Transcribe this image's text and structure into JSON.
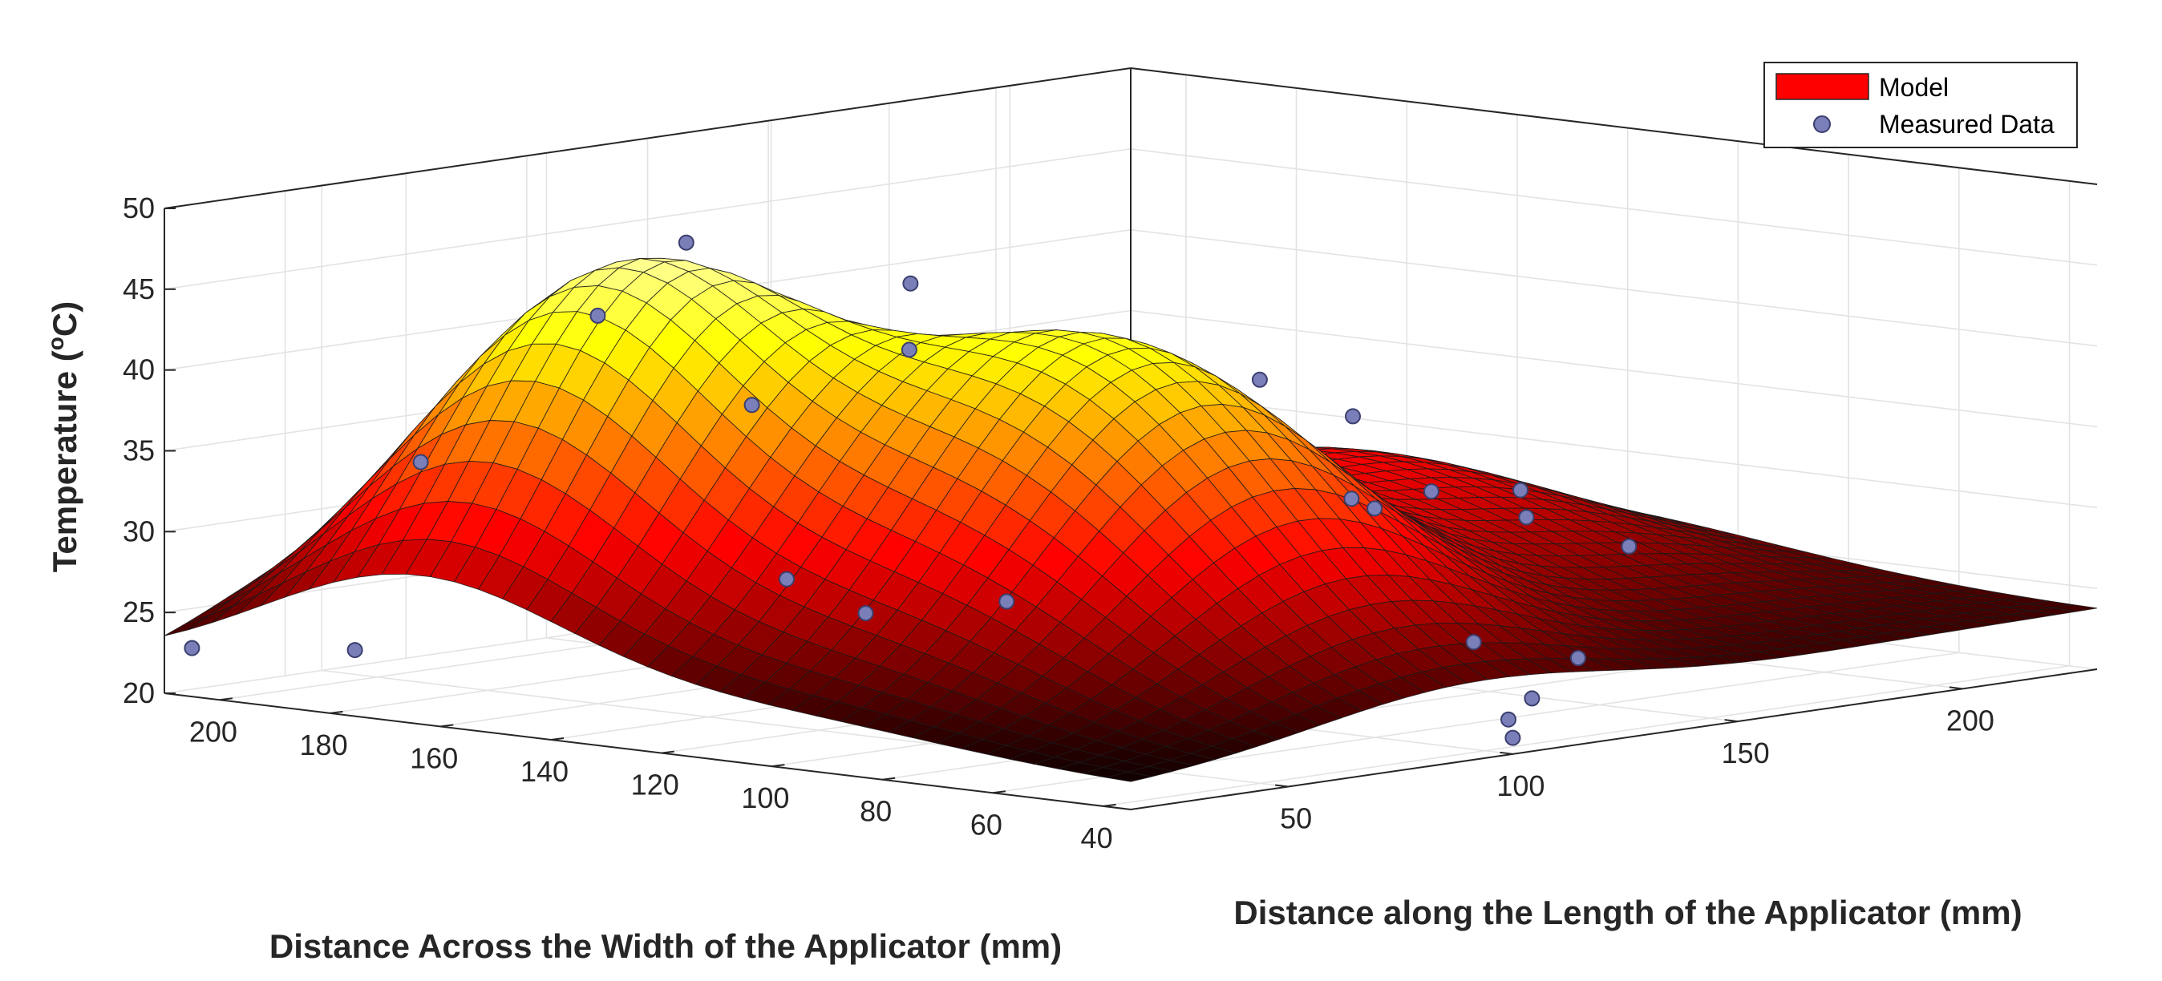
{
  "chart_data": {
    "type": "surface3d",
    "title": "",
    "xlabel": "Distance along the Length of the Applicator (mm)",
    "ylabel": "Distance Across the Width of the Applicator (mm)",
    "zlabel": "Temperature (°C)",
    "zlabel_parts": {
      "main": "Temperature (",
      "superscript": "o",
      "unit": "C)"
    },
    "xlim": [
      15,
      230
    ],
    "ylim": [
      35,
      210
    ],
    "zlim": [
      20,
      50
    ],
    "x_ticks": [
      50,
      100,
      150,
      200
    ],
    "y_ticks": [
      200,
      180,
      160,
      140,
      120,
      100,
      80,
      60,
      40
    ],
    "z_ticks": [
      20,
      25,
      30,
      35,
      40,
      45,
      50
    ],
    "grid": true,
    "legend": {
      "position": "top-right",
      "entries": [
        {
          "label": "Model",
          "kind": "patch",
          "color": "#ff0000"
        },
        {
          "label": "Measured Data",
          "kind": "marker",
          "color": "#7b7fb9"
        }
      ]
    },
    "surface_model": {
      "base": 21.5,
      "edge_ramp_per_mm": 0.01,
      "peaks": [
        {
          "x": 60,
          "y": 165,
          "amplitude": 23,
          "sigma_x": 30,
          "sigma_y": 28
        },
        {
          "x": 90,
          "y": 100,
          "amplitude": 20,
          "sigma_x": 34,
          "sigma_y": 32
        },
        {
          "x": 180,
          "y": 135,
          "amplitude": 8,
          "sigma_x": 35,
          "sigma_y": 40
        }
      ],
      "grid_nx": 46,
      "grid_ny": 40
    },
    "measured_data": [
      {
        "x": 15,
        "y": 205,
        "z": 23
      },
      {
        "x": 23,
        "y": 182,
        "z": 23.5
      },
      {
        "x": 45,
        "y": 188,
        "z": 34
      },
      {
        "x": 50,
        "y": 160,
        "z": 44
      },
      {
        "x": 66,
        "y": 157,
        "z": 48
      },
      {
        "x": 72,
        "y": 150,
        "z": 38
      },
      {
        "x": 80,
        "y": 128,
        "z": 42
      },
      {
        "x": 95,
        "y": 140,
        "z": 45
      },
      {
        "x": 65,
        "y": 138,
        "z": 28
      },
      {
        "x": 58,
        "y": 118,
        "z": 27
      },
      {
        "x": 82,
        "y": 112,
        "z": 27
      },
      {
        "x": 95,
        "y": 38,
        "z": 27
      },
      {
        "x": 100,
        "y": 35,
        "z": 21
      },
      {
        "x": 115,
        "y": 48,
        "z": 21
      },
      {
        "x": 135,
        "y": 60,
        "z": 21
      },
      {
        "x": 160,
        "y": 72,
        "z": 22
      },
      {
        "x": 170,
        "y": 117,
        "z": 29
      },
      {
        "x": 185,
        "y": 150,
        "z": 35
      },
      {
        "x": 190,
        "y": 123,
        "z": 29
      },
      {
        "x": 200,
        "y": 115,
        "z": 29
      },
      {
        "x": 205,
        "y": 118,
        "z": 27
      },
      {
        "x": 218,
        "y": 110,
        "z": 25
      },
      {
        "x": 218,
        "y": 160,
        "z": 31
      },
      {
        "x": 230,
        "y": 170,
        "z": 25
      }
    ],
    "colormap": "hot"
  }
}
